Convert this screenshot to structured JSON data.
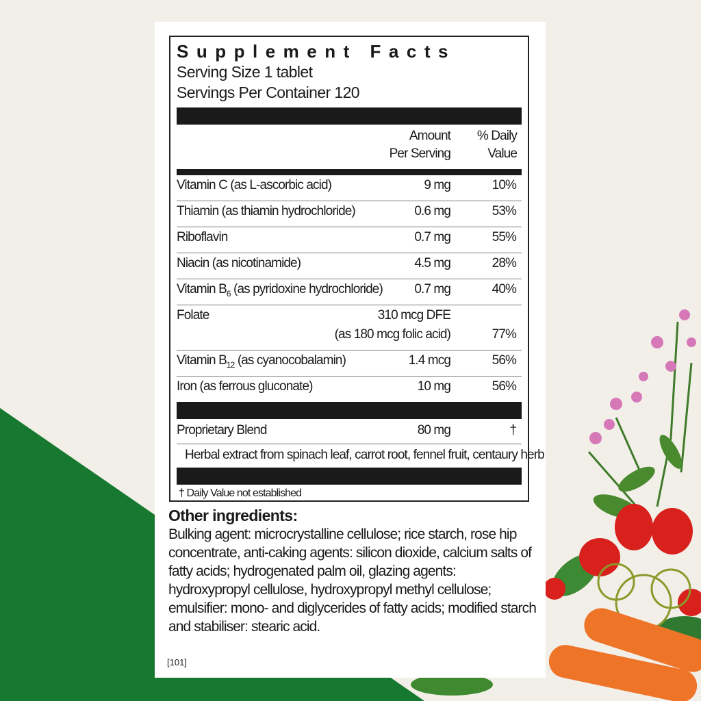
{
  "colors": {
    "background": "#f2efe9",
    "green": "#17792f",
    "panel": "#ffffff",
    "text": "#1a1a1a"
  },
  "facts": {
    "title": "Supplement Facts",
    "serving_size": "Serving Size 1 tablet",
    "servings_per_container": "Servings Per Container 120",
    "col_amount_1": "Amount",
    "col_amount_2": "Per Serving",
    "col_dv_1": "% Daily",
    "col_dv_2": "Value",
    "rows": [
      {
        "name": "Vitamin C (as L-ascorbic acid)",
        "amount": "9 mg",
        "dv": "10%"
      },
      {
        "name": "Thiamin (as thiamin hydrochloride)",
        "amount": "0.6 mg",
        "dv": "53%"
      },
      {
        "name": "Riboflavin",
        "amount": "0.7 mg",
        "dv": "55%"
      },
      {
        "name": "Niacin (as nicotinamide)",
        "amount": "4.5 mg",
        "dv": "28%"
      },
      {
        "name_pre": "Vitamin B",
        "name_sub": "6",
        "name_post": " (as pyridoxine hydrochloride)",
        "amount": "0.7 mg",
        "dv": "40%"
      },
      {
        "name": "Folate",
        "amount": "310 mcg DFE",
        "amount_2": "(as 180 mcg folic acid)",
        "dv": "77%"
      },
      {
        "name_pre": "Vitamin B",
        "name_sub": "12",
        "name_post": " (as cyanocobalamin)",
        "amount": "1.4 mcg",
        "dv": "56%"
      },
      {
        "name": "Iron (as ferrous gluconate)",
        "amount": "10 mg",
        "dv": "56%"
      }
    ],
    "blend": {
      "name": "Proprietary Blend",
      "amount": "80 mg",
      "dv": "†",
      "detail": "Herbal extract from spinach leaf, carrot root, fennel fruit, centaury herb"
    },
    "footnote": "† Daily Value not established"
  },
  "other": {
    "heading": "Other ingredients:",
    "text": "Bulking agent: microcrystalline cellulose; rice starch, rose hip concentrate, anti-caking agents: silicon dioxide, calcium salts of fatty acids; hydrogenated palm oil, glazing agents: hydroxypropyl cellulose, hydroxypropyl methyl cellulose; emulsifier: mono- and diglycerides of fatty acids; modified starch and stabiliser: stearic acid."
  },
  "code": "[101]"
}
